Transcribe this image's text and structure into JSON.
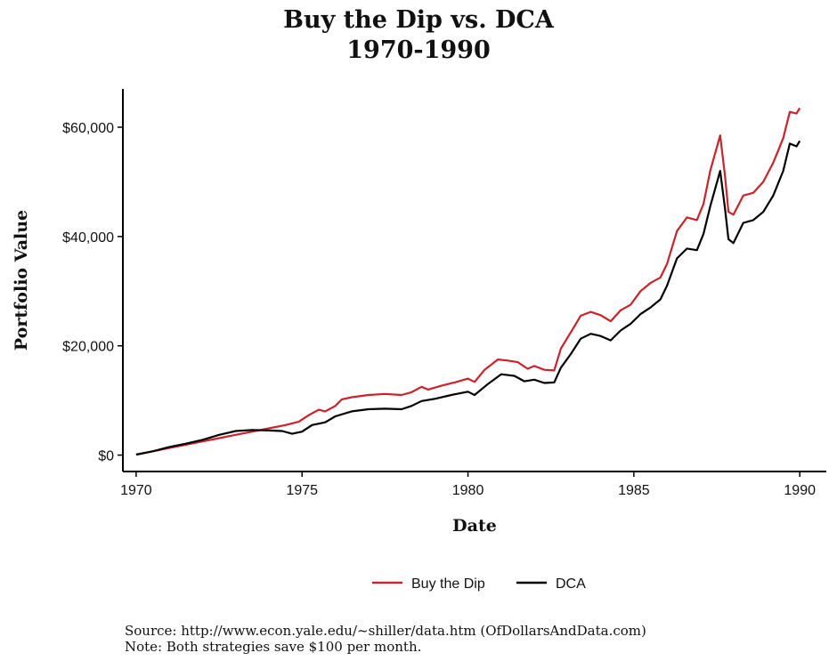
{
  "chart_data": {
    "type": "line",
    "title": [
      "Buy the Dip vs. DCA",
      "1970-1990"
    ],
    "xlabel": "Date",
    "ylabel": "Portfolio Value",
    "xlim": [
      1969.6,
      1990.8
    ],
    "ylim": [
      -3000,
      67000
    ],
    "x_ticks": [
      1970,
      1975,
      1980,
      1985,
      1990
    ],
    "x_tick_labels": [
      "1970",
      "1975",
      "1980",
      "1985",
      "1990"
    ],
    "y_ticks": [
      0,
      20000,
      40000,
      60000
    ],
    "y_tick_labels": [
      "$0",
      "$20,000",
      "$40,000",
      "$60,000"
    ],
    "grid": false,
    "legend_position": "bottom",
    "series": [
      {
        "name": "Buy the Dip",
        "color": "#cc2229",
        "points": [
          [
            1970.0,
            100
          ],
          [
            1970.5,
            700
          ],
          [
            1971.0,
            1300
          ],
          [
            1971.5,
            1900
          ],
          [
            1972.0,
            2500
          ],
          [
            1972.5,
            3100
          ],
          [
            1973.0,
            3700
          ],
          [
            1973.5,
            4300
          ],
          [
            1974.0,
            4900
          ],
          [
            1974.5,
            5500
          ],
          [
            1974.9,
            6100
          ],
          [
            1975.2,
            7300
          ],
          [
            1975.5,
            8300
          ],
          [
            1975.7,
            8000
          ],
          [
            1976.0,
            9000
          ],
          [
            1976.2,
            10200
          ],
          [
            1976.5,
            10600
          ],
          [
            1977.0,
            11000
          ],
          [
            1977.5,
            11200
          ],
          [
            1978.0,
            11000
          ],
          [
            1978.3,
            11500
          ],
          [
            1978.6,
            12500
          ],
          [
            1978.8,
            12000
          ],
          [
            1979.2,
            12700
          ],
          [
            1979.6,
            13300
          ],
          [
            1980.0,
            14000
          ],
          [
            1980.2,
            13400
          ],
          [
            1980.5,
            15600
          ],
          [
            1980.9,
            17500
          ],
          [
            1981.2,
            17300
          ],
          [
            1981.5,
            17000
          ],
          [
            1981.8,
            15800
          ],
          [
            1982.0,
            16300
          ],
          [
            1982.3,
            15600
          ],
          [
            1982.6,
            15500
          ],
          [
            1982.8,
            19500
          ],
          [
            1983.1,
            22500
          ],
          [
            1983.4,
            25500
          ],
          [
            1983.7,
            26200
          ],
          [
            1984.0,
            25600
          ],
          [
            1984.3,
            24500
          ],
          [
            1984.6,
            26500
          ],
          [
            1984.9,
            27500
          ],
          [
            1985.2,
            30000
          ],
          [
            1985.5,
            31500
          ],
          [
            1985.8,
            32500
          ],
          [
            1986.0,
            35000
          ],
          [
            1986.3,
            41000
          ],
          [
            1986.6,
            43500
          ],
          [
            1986.9,
            43000
          ],
          [
            1987.1,
            46000
          ],
          [
            1987.3,
            52000
          ],
          [
            1987.6,
            58500
          ],
          [
            1987.75,
            51000
          ],
          [
            1987.85,
            44500
          ],
          [
            1988.0,
            44000
          ],
          [
            1988.3,
            47500
          ],
          [
            1988.6,
            48000
          ],
          [
            1988.9,
            50000
          ],
          [
            1989.2,
            53500
          ],
          [
            1989.5,
            58000
          ],
          [
            1989.7,
            62800
          ],
          [
            1989.9,
            62500
          ],
          [
            1990.0,
            63500
          ]
        ]
      },
      {
        "name": "DCA",
        "color": "#000000",
        "points": [
          [
            1970.0,
            100
          ],
          [
            1970.5,
            700
          ],
          [
            1971.0,
            1500
          ],
          [
            1971.5,
            2100
          ],
          [
            1972.0,
            2800
          ],
          [
            1972.5,
            3700
          ],
          [
            1973.0,
            4400
          ],
          [
            1973.5,
            4600
          ],
          [
            1974.0,
            4500
          ],
          [
            1974.4,
            4400
          ],
          [
            1974.7,
            3900
          ],
          [
            1975.0,
            4300
          ],
          [
            1975.3,
            5500
          ],
          [
            1975.7,
            6000
          ],
          [
            1976.0,
            7100
          ],
          [
            1976.5,
            8000
          ],
          [
            1977.0,
            8400
          ],
          [
            1977.5,
            8500
          ],
          [
            1978.0,
            8400
          ],
          [
            1978.3,
            9000
          ],
          [
            1978.6,
            9900
          ],
          [
            1979.0,
            10300
          ],
          [
            1979.5,
            11000
          ],
          [
            1980.0,
            11600
          ],
          [
            1980.2,
            11000
          ],
          [
            1980.6,
            13000
          ],
          [
            1981.0,
            14800
          ],
          [
            1981.4,
            14500
          ],
          [
            1981.7,
            13500
          ],
          [
            1982.0,
            13800
          ],
          [
            1982.3,
            13200
          ],
          [
            1982.6,
            13300
          ],
          [
            1982.8,
            16000
          ],
          [
            1983.1,
            18500
          ],
          [
            1983.4,
            21300
          ],
          [
            1983.7,
            22200
          ],
          [
            1984.0,
            21800
          ],
          [
            1984.3,
            21000
          ],
          [
            1984.6,
            22800
          ],
          [
            1984.9,
            24000
          ],
          [
            1985.2,
            25800
          ],
          [
            1985.5,
            27000
          ],
          [
            1985.8,
            28500
          ],
          [
            1986.0,
            31000
          ],
          [
            1986.3,
            36000
          ],
          [
            1986.6,
            37800
          ],
          [
            1986.9,
            37500
          ],
          [
            1987.1,
            40500
          ],
          [
            1987.3,
            45500
          ],
          [
            1987.6,
            52000
          ],
          [
            1987.75,
            45000
          ],
          [
            1987.85,
            39500
          ],
          [
            1988.0,
            38800
          ],
          [
            1988.3,
            42500
          ],
          [
            1988.6,
            43000
          ],
          [
            1988.9,
            44500
          ],
          [
            1989.2,
            47500
          ],
          [
            1989.5,
            52000
          ],
          [
            1989.7,
            57000
          ],
          [
            1989.9,
            56500
          ],
          [
            1990.0,
            57500
          ]
        ]
      }
    ]
  },
  "source_text": "Source:  http://www.econ.yale.edu/~shiller/data.htm (OfDollarsAndData.com)",
  "note_text": "Note: Both strategies save $100 per month."
}
